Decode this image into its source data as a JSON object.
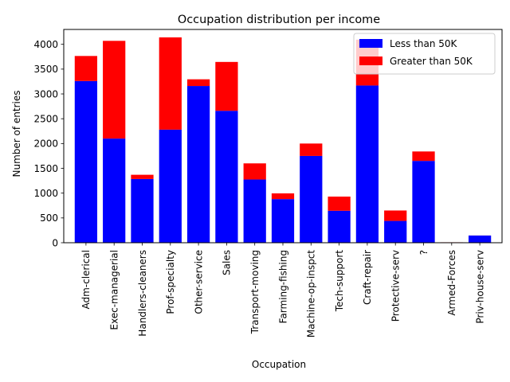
{
  "chart_data": {
    "type": "bar",
    "stacked": true,
    "title": "Occupation distribution per income",
    "xlabel": "Occupation",
    "ylabel": "Number of entries",
    "ylim": [
      0,
      4300
    ],
    "yticks": [
      0,
      500,
      1000,
      1500,
      2000,
      2500,
      3000,
      3500,
      4000
    ],
    "grid": false,
    "legend_position": "top-right",
    "categories": [
      "Adm-clerical",
      "Exec-managerial",
      "Handlers-cleaners",
      "Prof-specialty",
      "Other-service",
      "Sales",
      "Transport-moving",
      "Farming-fishing",
      "Machine-op-inspct",
      "Tech-support",
      "Craft-repair",
      "Protective-serv",
      "?",
      "Armed-Forces",
      "Priv-house-serv"
    ],
    "series": [
      {
        "name": "Less than 50K",
        "color": "#0000ff",
        "values": [
          3260,
          2100,
          1285,
          2280,
          3160,
          2660,
          1275,
          880,
          1750,
          645,
          3170,
          440,
          1650,
          8,
          145
        ]
      },
      {
        "name": "Greater than 50K",
        "color": "#ff0000",
        "values": [
          505,
          1970,
          85,
          1860,
          135,
          985,
          325,
          115,
          250,
          285,
          925,
          210,
          190,
          1,
          1
        ]
      }
    ]
  }
}
